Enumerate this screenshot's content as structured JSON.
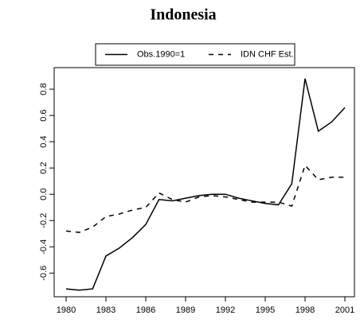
{
  "chart_data": {
    "type": "line",
    "title": "Indonesia",
    "x": [
      1980,
      1981,
      1982,
      1983,
      1984,
      1985,
      1986,
      1987,
      1988,
      1989,
      1990,
      1991,
      1992,
      1993,
      1994,
      1995,
      1996,
      1997,
      1998,
      1999,
      2000,
      2001
    ],
    "series": [
      {
        "name": "Obs.1990=1",
        "color": "#000000",
        "linestyle": "solid",
        "values": [
          -0.72,
          -0.73,
          -0.72,
          -0.47,
          -0.41,
          -0.33,
          -0.23,
          -0.04,
          -0.05,
          -0.03,
          -0.01,
          0.0,
          0.0,
          -0.03,
          -0.05,
          -0.07,
          -0.08,
          0.08,
          0.88,
          0.48,
          0.55,
          0.66
        ]
      },
      {
        "name": "IDN CHF Est.",
        "color": "#000000",
        "linestyle": "dashed",
        "values": [
          -0.28,
          -0.29,
          -0.25,
          -0.17,
          -0.15,
          -0.12,
          -0.1,
          0.01,
          -0.04,
          -0.06,
          -0.02,
          -0.01,
          -0.02,
          -0.04,
          -0.06,
          -0.06,
          -0.06,
          -0.09,
          0.22,
          0.11,
          0.13,
          0.13
        ]
      }
    ],
    "xlim": [
      1979.1,
      2001.72
    ],
    "xticks": [
      1980,
      1983,
      1986,
      1989,
      1992,
      1995,
      1998,
      2001
    ],
    "ylim": [
      -0.78,
      0.964
    ],
    "yticks": [
      {
        "value": -0.6,
        "label": "-0.6"
      },
      {
        "value": -0.4,
        "label": "-0.4"
      },
      {
        "value": -0.2,
        "label": "-0.2"
      },
      {
        "value": 0,
        "label": "0.0"
      },
      {
        "value": 0.2,
        "label": "0.2"
      },
      {
        "value": 0.4,
        "label": "0.4"
      },
      {
        "value": 0.6,
        "label": "0.6"
      },
      {
        "value": 0.8,
        "label": "0.8"
      }
    ],
    "grid": false,
    "legend": "top"
  }
}
